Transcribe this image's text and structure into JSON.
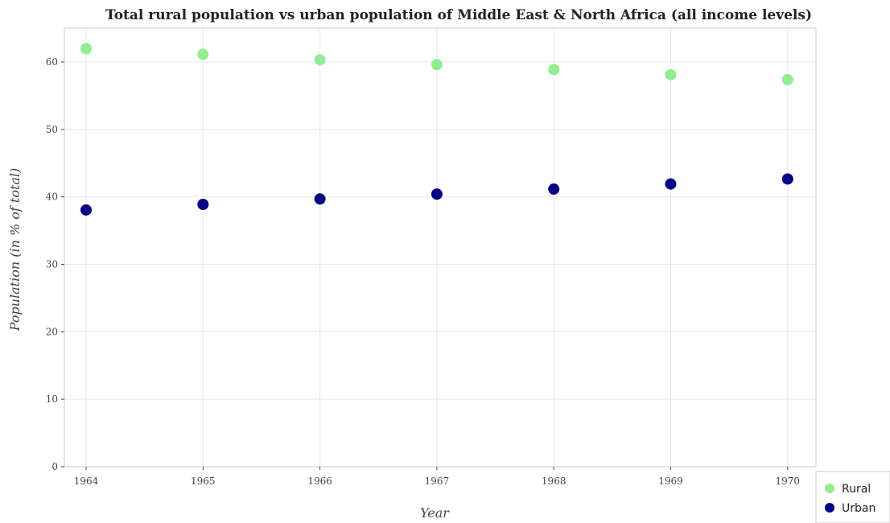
{
  "chart_data": {
    "type": "scatter",
    "title": "Total rural population vs urban population of Middle East & North Africa (all income levels)",
    "xlabel": "Year",
    "ylabel": "Population (in % of total)",
    "ylim": [
      0,
      65
    ],
    "yticks": [
      0,
      10,
      20,
      30,
      40,
      50,
      60
    ],
    "categories": [
      "1964",
      "1965",
      "1966",
      "1967",
      "1968",
      "1969",
      "1970"
    ],
    "grid": true,
    "legend_position": "bottom-right",
    "series": [
      {
        "name": "Rural",
        "color": "#90ee90",
        "values": [
          61.95,
          61.12,
          60.32,
          59.6,
          58.86,
          58.1,
          57.36
        ]
      },
      {
        "name": "Urban",
        "color": "#00008b",
        "values": [
          38.05,
          38.88,
          39.68,
          40.4,
          41.14,
          41.9,
          42.64
        ]
      }
    ]
  }
}
